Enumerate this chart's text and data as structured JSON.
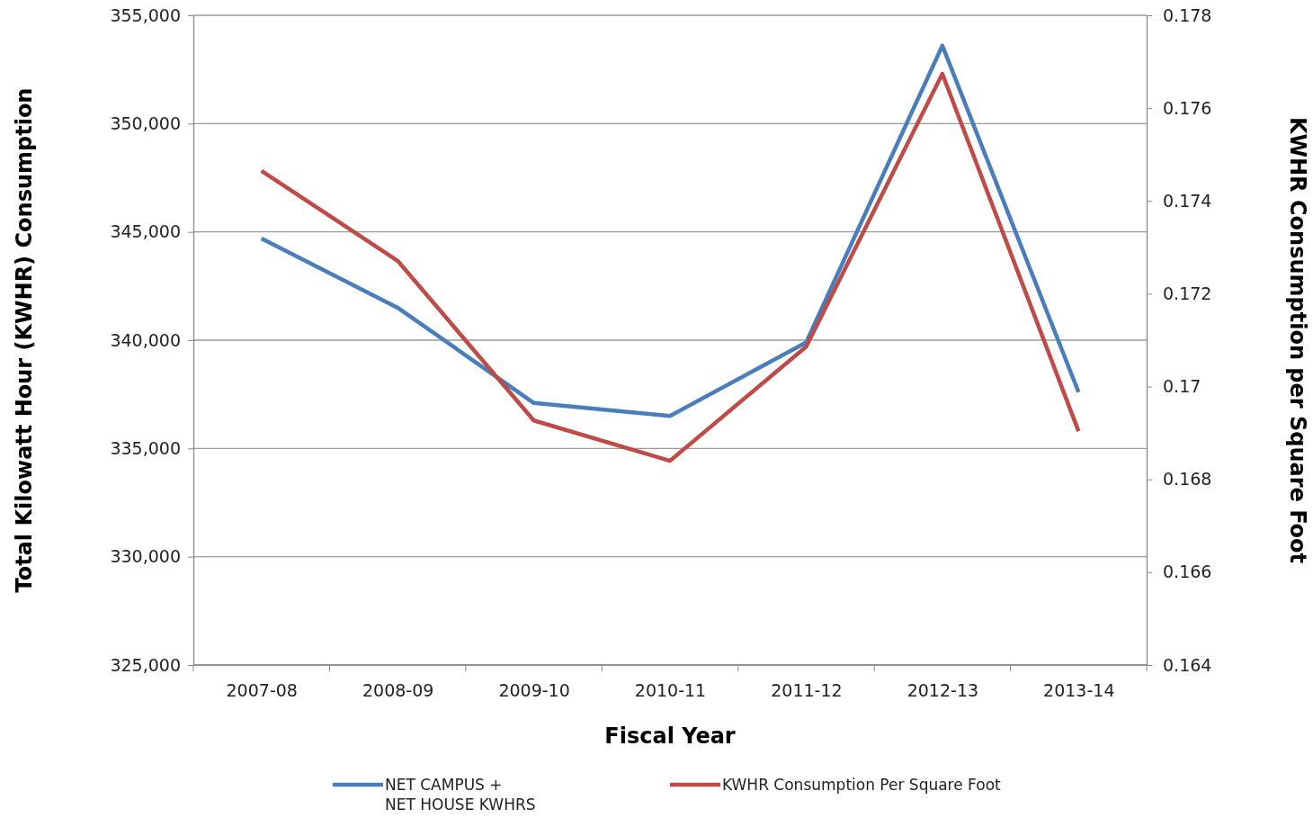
{
  "chart_data": {
    "type": "line",
    "xlabel": "Fiscal Year",
    "ylabel": "Total Kilowatt Hour (KWHR) Consumption",
    "y2label": "KWHR Consumption per Square Foot",
    "categories": [
      "2007-08",
      "2008-09",
      "2009-10",
      "2010-11",
      "2011-12",
      "2012-13",
      "2013-14"
    ],
    "series": [
      {
        "name": "NET CAMPUS + NET HOUSE KWHRS",
        "color": "#4a7ebb",
        "values": [
          344700,
          341500,
          337100,
          336500,
          339900,
          353600,
          337600
        ]
      },
      {
        "name": "KWHR Consumption Per Square Foot",
        "color": "#be4b48",
        "axis": "y2",
        "values": [
          0.17465,
          0.17271,
          0.16927,
          0.1684,
          0.17086,
          0.17674,
          0.16904
        ]
      }
    ],
    "ylim": [
      325000,
      355000
    ],
    "yticks": [
      {
        "value": 325000,
        "label": "325,000"
      },
      {
        "value": 330000,
        "label": "330,000"
      },
      {
        "value": 335000,
        "label": "335,000"
      },
      {
        "value": 340000,
        "label": "340,000"
      },
      {
        "value": 345000,
        "label": "345,000"
      },
      {
        "value": 350000,
        "label": "350,000"
      },
      {
        "value": 355000,
        "label": "355,000"
      }
    ],
    "y2lim": [
      0.164,
      0.178
    ],
    "y2ticks": [
      0.164,
      0.166,
      0.168,
      0.17,
      0.172,
      0.174,
      0.176,
      0.178
    ],
    "grid": "y",
    "legend": "bottom",
    "marker": "none",
    "line_style": "solid"
  }
}
